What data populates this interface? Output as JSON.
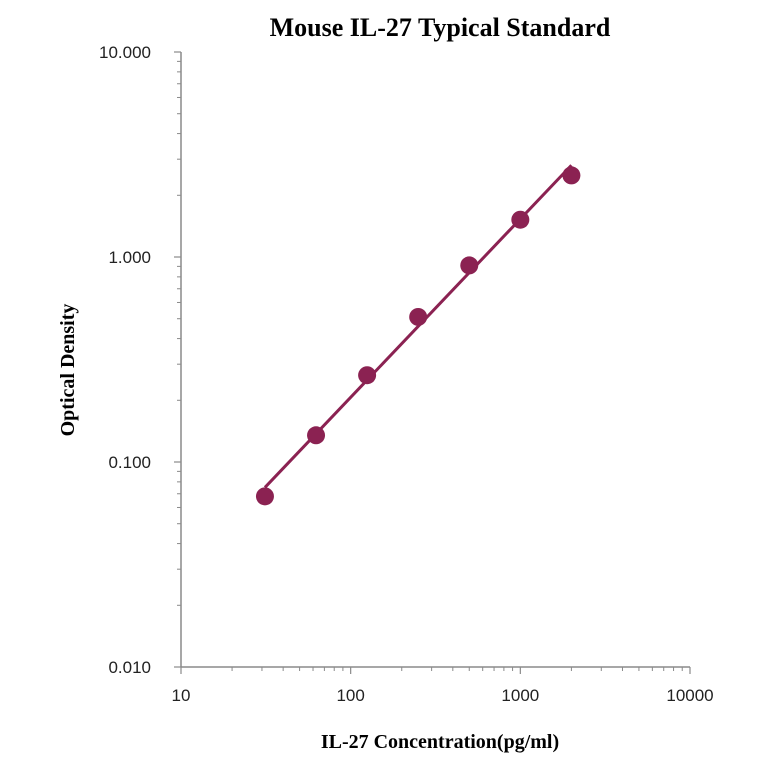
{
  "chart_data": {
    "type": "scatter",
    "title": "Mouse IL-27 Typical  Standard",
    "xlabel": "IL-27  Concentration(pg/ml)",
    "ylabel": "Optical  Density",
    "x_scale": "log",
    "y_scale": "log",
    "xlim": [
      10,
      10000
    ],
    "ylim": [
      0.01,
      10
    ],
    "x_ticks": [
      "10",
      "100",
      "1000",
      "10000"
    ],
    "y_ticks": [
      "0.010",
      "0.100",
      "1.000",
      "10.000"
    ],
    "grid": false,
    "legend": "none",
    "series": [
      {
        "x": [
          31.25,
          62.5,
          125,
          250,
          500,
          1000,
          2000
        ],
        "y": [
          0.068,
          0.135,
          0.265,
          0.51,
          0.91,
          1.52,
          2.5
        ],
        "color": "#8b2252",
        "trendline": true
      }
    ]
  }
}
